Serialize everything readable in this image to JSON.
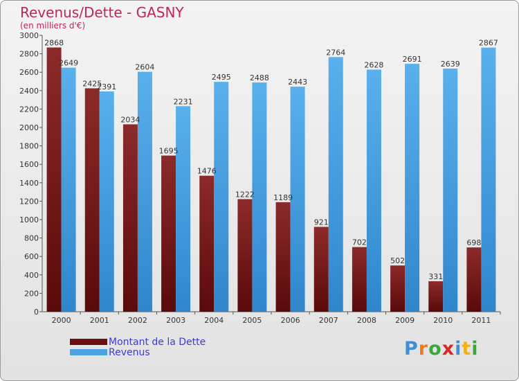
{
  "chart_data": {
    "type": "bar",
    "title": "Revenus/Dette - GASNY",
    "subtitle": "(en milliers d'€)",
    "categories": [
      "2000",
      "2001",
      "2002",
      "2003",
      "2004",
      "2005",
      "2006",
      "2007",
      "2008",
      "2009",
      "2010",
      "2011"
    ],
    "series": [
      {
        "name": "Montant de la Dette",
        "values": [
          2868,
          2425,
          2034,
          1695,
          1476,
          1222,
          1189,
          921,
          702,
          502,
          331,
          698
        ],
        "color": "#7a1a1a"
      },
      {
        "name": "Revenus",
        "values": [
          2649,
          2391,
          2604,
          2231,
          2495,
          2488,
          2443,
          2764,
          2628,
          2691,
          2639,
          2867
        ],
        "color": "#3f9fe0"
      }
    ],
    "ylim": [
      0,
      3000
    ],
    "yticks": [
      0,
      200,
      400,
      600,
      800,
      1000,
      1200,
      1400,
      1600,
      1800,
      2000,
      2200,
      2400,
      2600,
      2800,
      3000
    ],
    "grid": false,
    "legend": "bottom-left"
  },
  "logo": {
    "letters": [
      {
        "ch": "P",
        "color": "#3f8fd8"
      },
      {
        "ch": "r",
        "color": "#f07a1a"
      },
      {
        "ch": "o",
        "color": "#3aa83a"
      },
      {
        "ch": "x",
        "color": "#d42a2a"
      },
      {
        "ch": "i",
        "color": "#3f8fd8"
      },
      {
        "ch": "t",
        "color": "#f0b21a"
      },
      {
        "ch": "i",
        "color": "#3aa83a"
      }
    ]
  }
}
